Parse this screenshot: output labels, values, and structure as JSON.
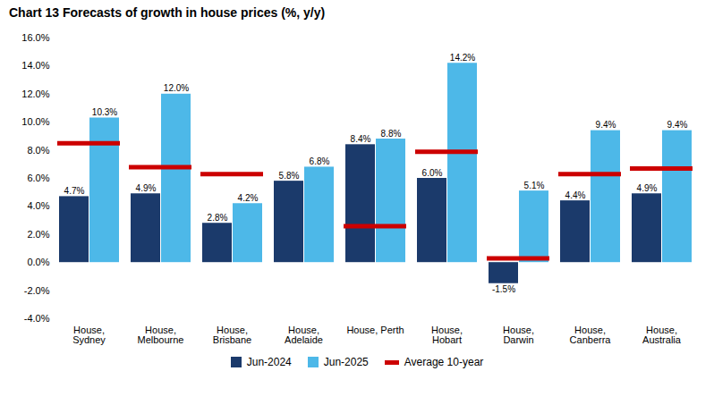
{
  "chart_data": {
    "type": "bar",
    "title": "Chart 13 Forecasts of growth in house prices  (%, y/y)",
    "categories": [
      "House,\nSydney",
      "House,\nMelbourne",
      "House,\nBrisbane",
      "House,\nAdelaide",
      "House, Perth",
      "House,\nHobart",
      "House,\nDarwin",
      "House,\nCanberra",
      "House,\nAustralia"
    ],
    "series": [
      {
        "name": "Jun-2024",
        "color": "#1b3a6b",
        "type": "bar",
        "values": [
          4.7,
          4.9,
          2.8,
          5.8,
          8.4,
          6.0,
          -1.5,
          4.4,
          4.9
        ],
        "value_labels": [
          "4.7%",
          "4.9%",
          "2.8%",
          "5.8%",
          "8.4%",
          "6.0%",
          "-1.5%",
          "4.4%",
          "4.9%"
        ]
      },
      {
        "name": "Jun-2025",
        "color": "#4db8e8",
        "type": "bar",
        "values": [
          10.3,
          12.0,
          4.2,
          6.8,
          8.8,
          14.2,
          5.1,
          9.4,
          9.4
        ],
        "value_labels": [
          "10.3%",
          "12.0%",
          "4.2%",
          "6.8%",
          "8.8%",
          "14.2%",
          "5.1%",
          "9.4%",
          "9.4%"
        ]
      },
      {
        "name": "Average 10-year",
        "color": "#cc0000",
        "type": "tick",
        "values": [
          8.5,
          6.8,
          6.3,
          null,
          2.6,
          7.9,
          0.3,
          6.3,
          6.7
        ]
      }
    ],
    "ylim": [
      -4.0,
      16.0
    ],
    "yticks": [
      {
        "value": -4.0,
        "label": "-4.0%"
      },
      {
        "value": -2.0,
        "label": "-2.0%"
      },
      {
        "value": 0.0,
        "label": "0.0%"
      },
      {
        "value": 2.0,
        "label": "2.0%"
      },
      {
        "value": 4.0,
        "label": "4.0%"
      },
      {
        "value": 6.0,
        "label": "6.0%"
      },
      {
        "value": 8.0,
        "label": "8.0%"
      },
      {
        "value": 10.0,
        "label": "10.0%"
      },
      {
        "value": 12.0,
        "label": "12.0%"
      },
      {
        "value": 14.0,
        "label": "14.0%"
      },
      {
        "value": 16.0,
        "label": "16.0%"
      }
    ],
    "grid": false,
    "data_labels": true,
    "legend": "bottom"
  }
}
